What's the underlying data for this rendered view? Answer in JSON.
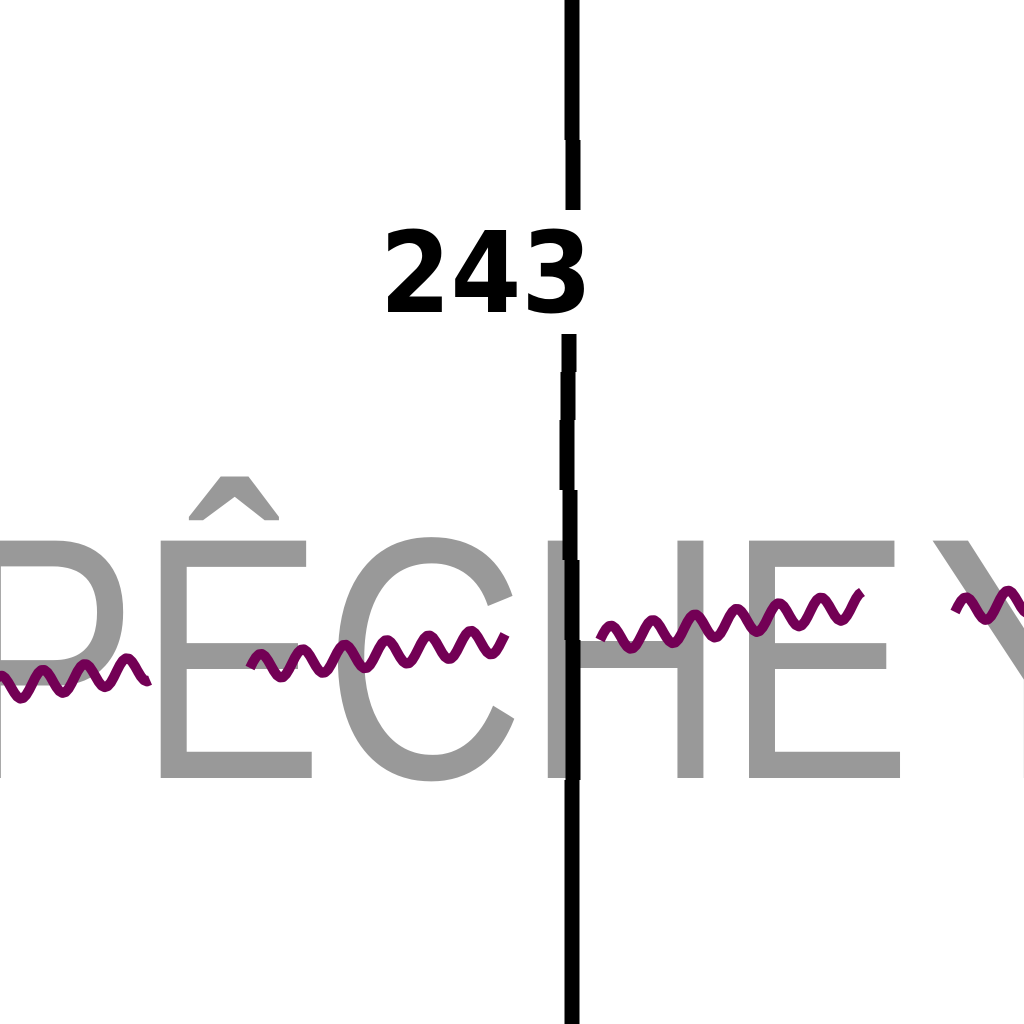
{
  "map": {
    "zone_label": "PÊCHE",
    "zone_label_trailing": "Y",
    "boundary_number": "243",
    "colors": {
      "background": "#ffffff",
      "zone_label": "#999999",
      "boundary_line": "#000000",
      "boundary_number": "#000000",
      "limit_line": "#730055"
    }
  }
}
